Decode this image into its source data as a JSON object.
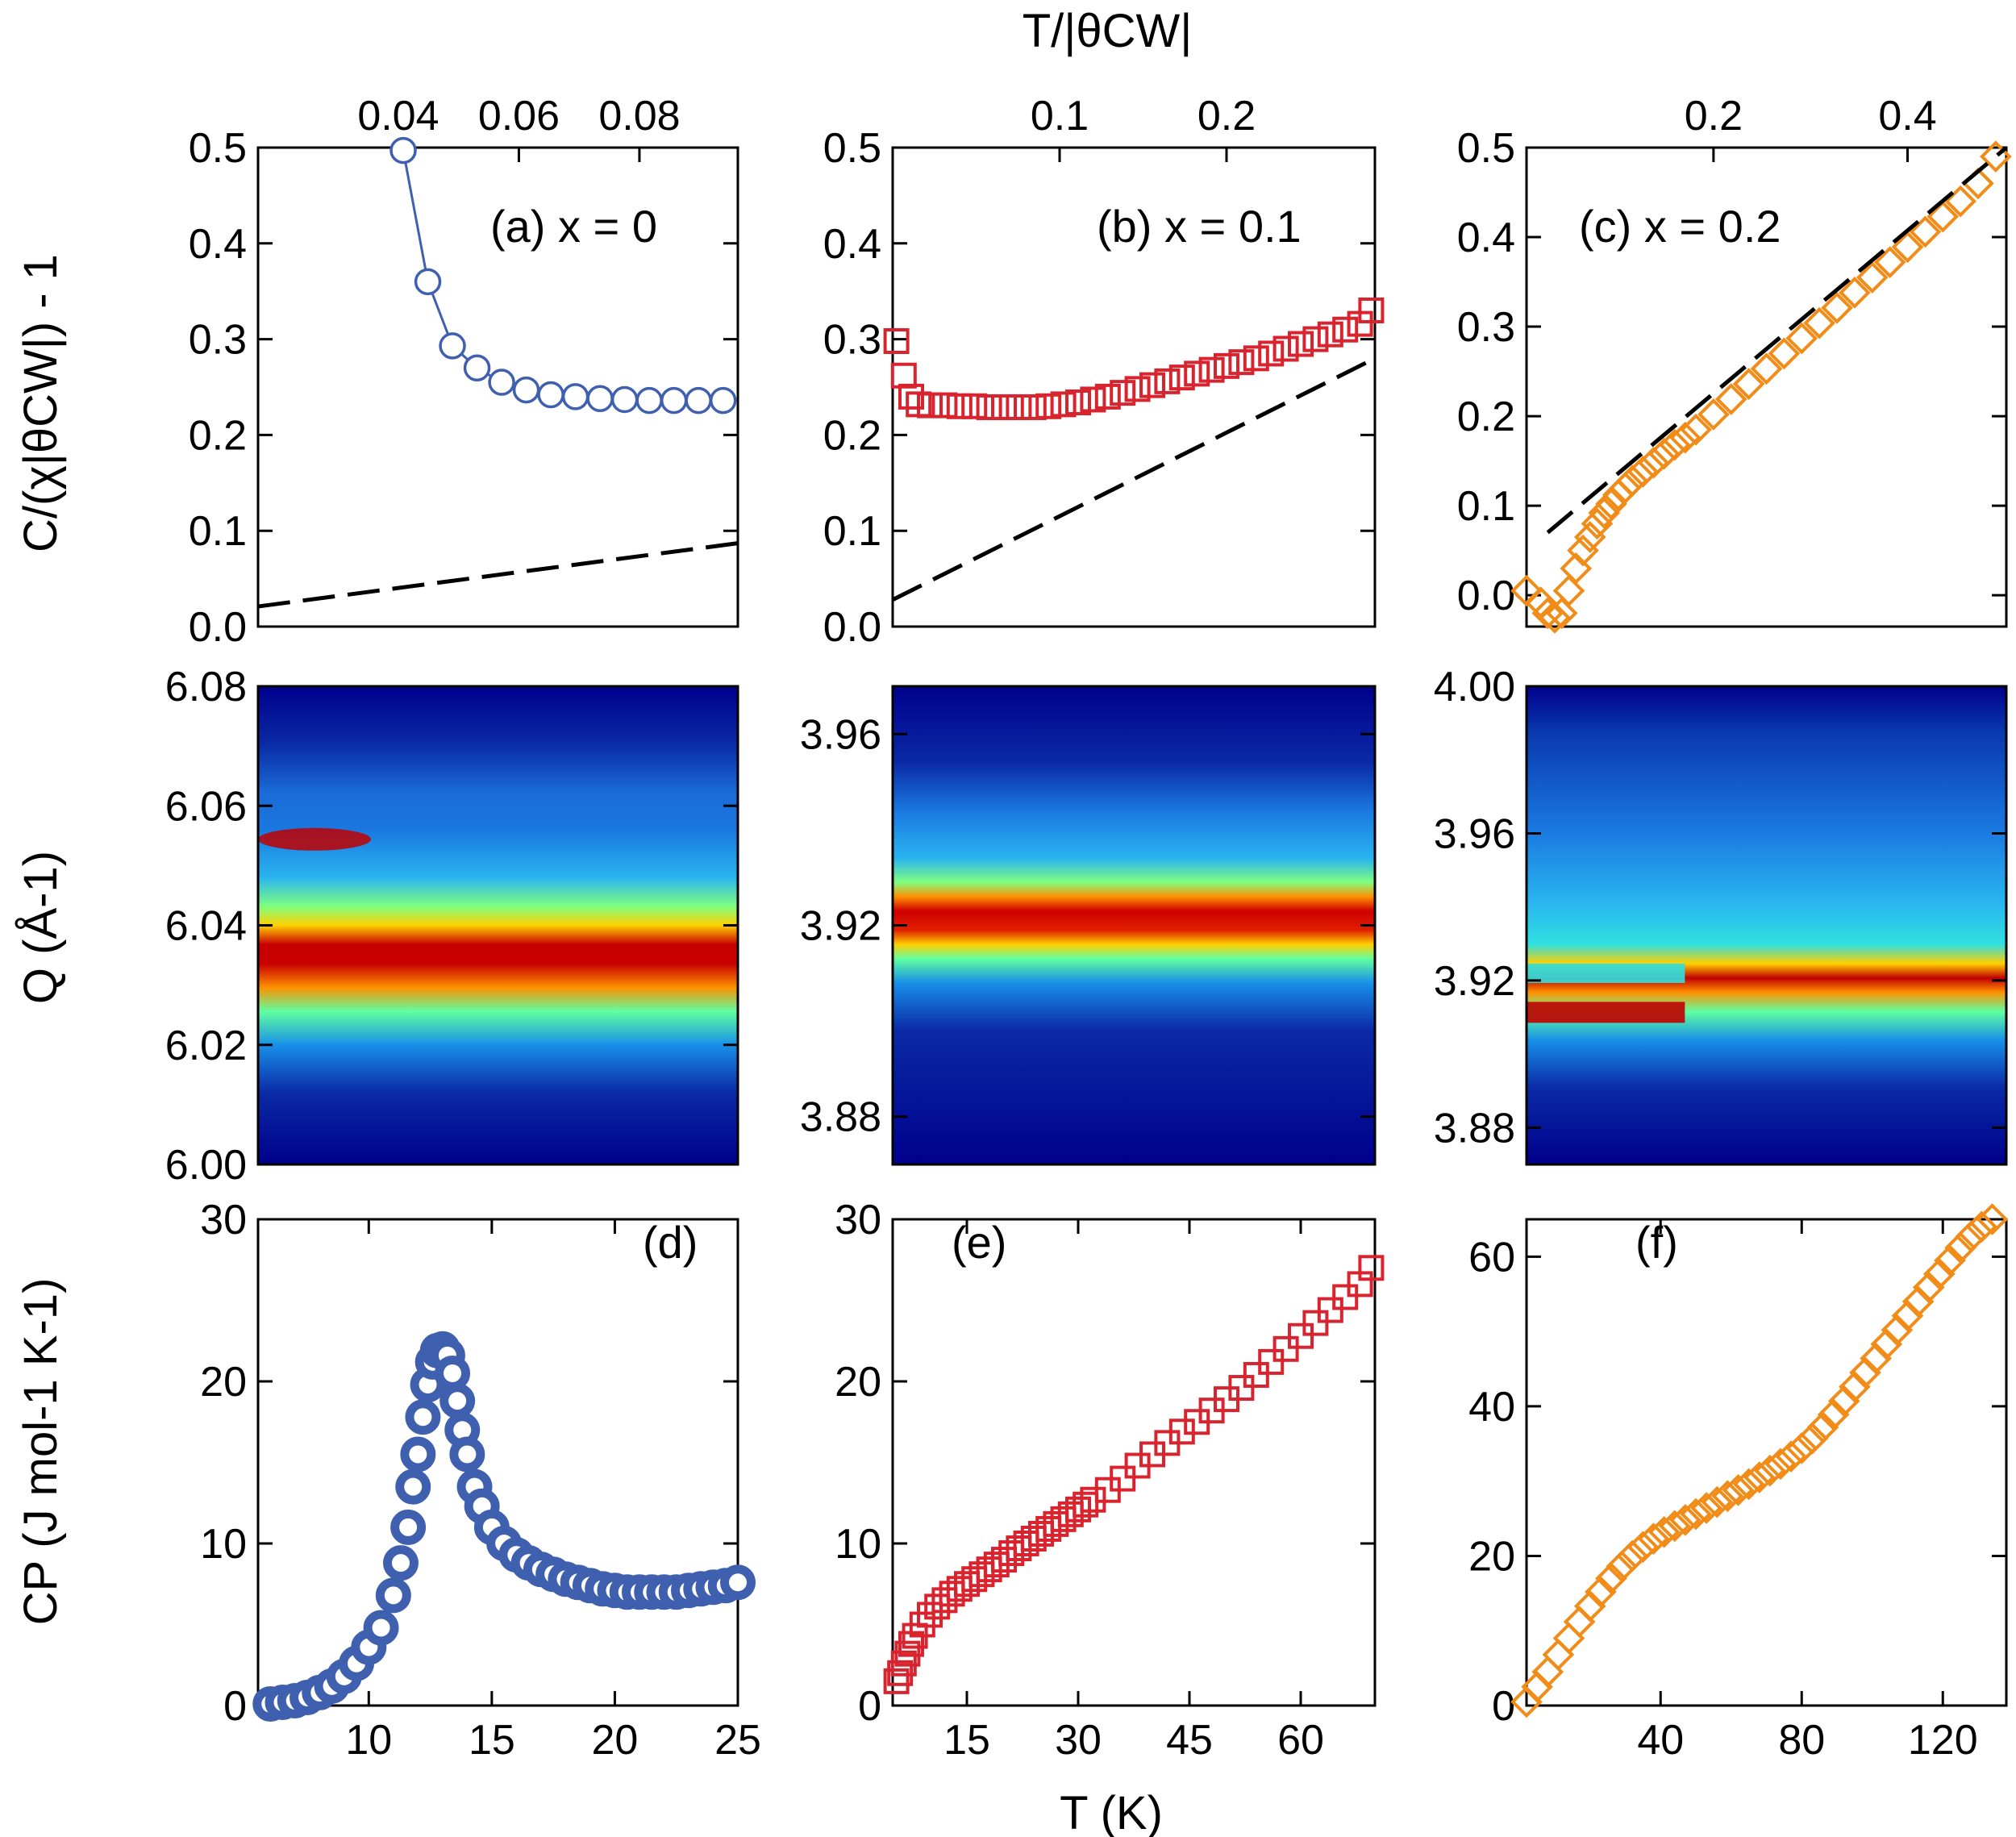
{
  "figure": {
    "top_axis_title": "T/|θCW|",
    "left_ylabel_top": "C/(χ|θCW|) - 1",
    "left_ylabel_mid": "Q (Å-1)",
    "left_ylabel_bot": "CP (J mol-1 K-1)",
    "bottom_xlabel": "T (K)"
  },
  "chart_data": [
    {
      "id": "a",
      "type": "line",
      "label": "(a) x = 0",
      "xlim": [
        5.5,
        25
      ],
      "ylim": [
        0,
        0.5
      ],
      "yticks": [
        0,
        0.1,
        0.2,
        0.3,
        0.4,
        0.5
      ],
      "top_axis": {
        "label": "T/|θCW|",
        "ticks": [
          "0.04",
          "0.06",
          "0.08"
        ],
        "tick_at_T": [
          11.2,
          16.1,
          21.0
        ]
      },
      "marker": "circle",
      "color": "#3f5faf",
      "series": [
        {
          "x": [
            11.4,
            12.4,
            13.4,
            14.4,
            15.4,
            16.4,
            17.4,
            18.4,
            19.4,
            20.4,
            21.4,
            22.4,
            23.4,
            24.4
          ],
          "y": [
            0.497,
            0.36,
            0.293,
            0.27,
            0.255,
            0.247,
            0.242,
            0.24,
            0.238,
            0.237,
            0.236,
            0.236,
            0.236,
            0.236
          ]
        },
        {
          "name": "",
          "style": "dashed",
          "x": [
            5.5,
            25
          ],
          "y": [
            0.021,
            0.087
          ]
        }
      ]
    },
    {
      "id": "b",
      "type": "scatter",
      "label": "(b) x = 0.1",
      "xlim": [
        5,
        70
      ],
      "ylim": [
        0,
        0.5
      ],
      "yticks": [
        0,
        0.1,
        0.2,
        0.3,
        0.4,
        0.5
      ],
      "top_axis": {
        "label": "T/|θCW|",
        "ticks": [
          "0.1",
          "0.2"
        ],
        "tick_at_T": [
          27.5,
          50
        ]
      },
      "marker": "square",
      "color": "#d8242e",
      "series": [
        {
          "x": [
            5.5,
            6.5,
            7.5,
            8.5,
            10,
            12,
            14,
            16,
            18,
            20,
            22,
            24,
            26,
            28,
            30,
            32,
            34,
            36,
            38,
            40,
            42,
            44,
            46,
            48,
            50,
            52,
            54,
            56,
            58,
            60,
            62,
            64,
            66,
            68,
            69.5
          ],
          "y": [
            0.298,
            0.262,
            0.24,
            0.232,
            0.231,
            0.231,
            0.23,
            0.23,
            0.229,
            0.229,
            0.229,
            0.229,
            0.23,
            0.232,
            0.234,
            0.237,
            0.24,
            0.244,
            0.248,
            0.252,
            0.256,
            0.26,
            0.264,
            0.268,
            0.272,
            0.276,
            0.28,
            0.285,
            0.29,
            0.295,
            0.3,
            0.305,
            0.31,
            0.316,
            0.33
          ]
        },
        {
          "name": "",
          "style": "dashed",
          "x": [
            5,
            70
          ],
          "y": [
            0.028,
            0.28
          ]
        }
      ]
    },
    {
      "id": "c",
      "type": "scatter",
      "label": "(c) x = 0.2",
      "xlim": [
        2,
        138
      ],
      "ylim": [
        -0.035,
        0.5
      ],
      "yticks": [
        0,
        0.1,
        0.2,
        0.3,
        0.4,
        0.5
      ],
      "top_axis": {
        "label": "T/|θCW|",
        "ticks": [
          "0.2",
          "0.4"
        ],
        "tick_at_T": [
          55,
          110
        ]
      },
      "marker": "diamond",
      "color": "#f28c18",
      "series": [
        {
          "x": [
            2,
            6,
            8,
            10,
            12,
            14,
            16,
            18,
            20,
            22,
            24,
            26,
            28,
            30,
            32,
            35,
            38,
            41,
            44,
            47,
            50,
            55,
            60,
            65,
            70,
            75,
            80,
            85,
            90,
            95,
            100,
            105,
            110,
            115,
            120,
            125,
            130,
            135
          ],
          "y": [
            0.005,
            -0.008,
            -0.02,
            -0.025,
            -0.02,
            0.005,
            0.03,
            0.05,
            0.065,
            0.08,
            0.092,
            0.102,
            0.112,
            0.12,
            0.128,
            0.138,
            0.148,
            0.158,
            0.168,
            0.176,
            0.185,
            0.202,
            0.219,
            0.236,
            0.253,
            0.27,
            0.287,
            0.304,
            0.321,
            0.338,
            0.355,
            0.372,
            0.389,
            0.406,
            0.423,
            0.44,
            0.46,
            0.49
          ]
        },
        {
          "name": "",
          "style": "dashed",
          "x": [
            8,
            138
          ],
          "y": [
            0.07,
            0.5
          ]
        }
      ]
    },
    {
      "id": "Qa",
      "type": "heatmap",
      "xlim": [
        5.5,
        25
      ],
      "ylim": [
        6.0,
        6.08
      ],
      "yticks": [
        "6.00",
        "6.02",
        "6.04",
        "6.06",
        "6.08"
      ]
    },
    {
      "id": "Qb",
      "type": "heatmap",
      "xlim": [
        5,
        70
      ],
      "ylim": [
        3.87,
        3.97
      ],
      "yticks": [
        "3.88",
        "3.92",
        "3.96"
      ]
    },
    {
      "id": "Qc",
      "type": "heatmap",
      "xlim": [
        2,
        138
      ],
      "ylim": [
        3.87,
        4.0
      ],
      "yticks": [
        "3.88",
        "3.92",
        "3.96",
        "4.00"
      ]
    },
    {
      "id": "d",
      "type": "scatter",
      "label": "(d)",
      "xlim": [
        5.5,
        25
      ],
      "ylim": [
        0,
        30
      ],
      "xticks": [
        "10",
        "15",
        "20",
        "25"
      ],
      "yticks": [
        "0",
        "10",
        "20",
        "30"
      ],
      "marker": "circle",
      "color": "#3f5faf",
      "series": [
        {
          "x": [
            6,
            6.5,
            7,
            7.5,
            8,
            8.5,
            9,
            9.5,
            10,
            10.5,
            11,
            11.3,
            11.6,
            11.8,
            12,
            12.2,
            12.4,
            12.6,
            12.8,
            13,
            13.2,
            13.4,
            13.6,
            13.8,
            14,
            14.3,
            14.6,
            15,
            15.5,
            16,
            16.5,
            17,
            17.5,
            18,
            18.5,
            19,
            19.5,
            20,
            20.5,
            21,
            21.5,
            22,
            22.5,
            23,
            23.5,
            24,
            24.5,
            25
          ],
          "y": [
            0.1,
            0.2,
            0.3,
            0.5,
            0.8,
            1.2,
            1.8,
            2.6,
            3.6,
            4.8,
            6.8,
            8.8,
            11.0,
            13.5,
            15.5,
            17.8,
            19.8,
            21.2,
            21.9,
            22.0,
            21.6,
            20.5,
            18.8,
            17.0,
            15.5,
            13.5,
            12.3,
            11.0,
            10.0,
            9.3,
            8.8,
            8.4,
            8.1,
            7.8,
            7.6,
            7.4,
            7.2,
            7.1,
            7.0,
            7.0,
            7.0,
            7.0,
            7.0,
            7.1,
            7.2,
            7.3,
            7.4,
            7.6
          ]
        }
      ]
    },
    {
      "id": "e",
      "type": "scatter",
      "label": "(e)",
      "xlim": [
        5,
        70
      ],
      "ylim": [
        0,
        30
      ],
      "xticks": [
        "15",
        "30",
        "45",
        "60"
      ],
      "yticks": [
        "0",
        "10",
        "20",
        "30"
      ],
      "marker": "square",
      "color": "#d8242e",
      "series": [
        {
          "x": [
            5.5,
            6,
            6.5,
            7,
            7.5,
            8,
            9,
            10,
            11,
            12,
            13,
            14,
            15,
            16,
            17,
            18,
            19,
            20,
            21,
            22,
            23,
            24,
            25,
            26,
            27,
            28,
            29,
            30,
            31,
            32,
            34,
            36,
            38,
            40,
            42,
            44,
            46,
            48,
            50,
            52,
            54,
            56,
            58,
            60,
            62,
            64,
            66,
            68,
            69.5
          ],
          "y": [
            1.5,
            2.0,
            2.6,
            3.2,
            3.8,
            4.3,
            5.0,
            5.6,
            6.1,
            6.5,
            6.9,
            7.2,
            7.5,
            7.8,
            8.1,
            8.4,
            8.7,
            9.0,
            9.4,
            9.7,
            10.0,
            10.3,
            10.6,
            10.9,
            11.2,
            11.5,
            11.8,
            12.1,
            12.4,
            12.7,
            13.3,
            14.0,
            14.8,
            15.5,
            16.2,
            16.9,
            17.5,
            18.2,
            18.9,
            19.6,
            20.4,
            21.2,
            22.0,
            22.8,
            23.6,
            24.4,
            25.2,
            26.0,
            27.0
          ]
        }
      ]
    },
    {
      "id": "f",
      "type": "scatter",
      "label": "(f)",
      "xlim": [
        2,
        138
      ],
      "ylim": [
        0,
        65
      ],
      "xticks": [
        "40",
        "80",
        "120"
      ],
      "yticks": [
        "0",
        "20",
        "40",
        "60"
      ],
      "marker": "diamond",
      "color": "#f28c18",
      "series": [
        {
          "x": [
            2,
            5,
            8,
            11,
            14,
            17,
            20,
            23,
            26,
            29,
            32,
            35,
            38,
            41,
            44,
            47,
            50,
            53,
            56,
            59,
            62,
            65,
            68,
            71,
            74,
            77,
            80,
            83,
            86,
            89,
            92,
            95,
            98,
            101,
            104,
            107,
            110,
            113,
            116,
            119,
            122,
            125,
            128,
            131,
            134
          ],
          "y": [
            0.5,
            2.5,
            4.5,
            6.8,
            9.0,
            11.2,
            13.3,
            15.2,
            17.0,
            18.6,
            20.0,
            21.2,
            22.3,
            23.2,
            24.0,
            24.8,
            25.6,
            26.4,
            27.2,
            28.0,
            28.8,
            29.6,
            30.5,
            31.4,
            32.3,
            33.3,
            34.4,
            35.7,
            37.2,
            38.9,
            40.7,
            42.6,
            44.5,
            46.4,
            48.3,
            50.2,
            52.1,
            54.0,
            55.9,
            57.7,
            59.5,
            61.2,
            62.7,
            64.0,
            65.0
          ]
        }
      ]
    }
  ]
}
